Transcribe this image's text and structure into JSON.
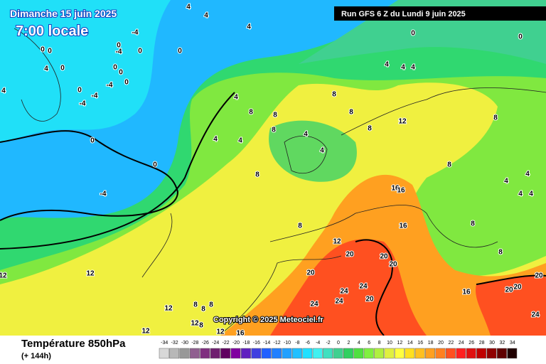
{
  "header": {
    "date": "Dimanche 15 juin 2025",
    "time": "7:00 locale",
    "run": "Run GFS 6 Z du Lundi 9 juin 2025"
  },
  "copyright": "Copyright © 2025 Meteociel.fr",
  "footer": {
    "title": "Température 850hPa",
    "lead": "(+ 144h)"
  },
  "legend": {
    "ticks": [
      -34,
      -32,
      -30,
      -28,
      -26,
      -24,
      -22,
      -20,
      -18,
      -16,
      -14,
      -12,
      -10,
      -8,
      -6,
      -4,
      -2,
      0,
      2,
      4,
      6,
      8,
      10,
      12,
      14,
      16,
      18,
      20,
      22,
      24,
      26,
      28,
      30,
      32,
      34
    ],
    "colors": [
      "#d8d8d8",
      "#b8b8b8",
      "#989898",
      "#906090",
      "#803080",
      "#702070",
      "#600060",
      "#8000a0",
      "#6020c0",
      "#4040e0",
      "#2060ff",
      "#2080ff",
      "#20a0ff",
      "#20c0ff",
      "#20e0ff",
      "#40f0f0",
      "#40e0c0",
      "#40d090",
      "#30d060",
      "#50e040",
      "#80f040",
      "#b0f040",
      "#e0f040",
      "#ffff40",
      "#ffe020",
      "#ffc020",
      "#ffa020",
      "#ff8020",
      "#ff5020",
      "#ff2020",
      "#e01010",
      "#c00000",
      "#900000",
      "#600000",
      "#200000"
    ]
  },
  "contour_labels": [
    4,
    4,
    4,
    -4,
    0,
    -4,
    0,
    0,
    0,
    0,
    0,
    4,
    0,
    0,
    0,
    -4,
    0,
    -4,
    -4,
    0,
    0,
    -4,
    4,
    0,
    0,
    4,
    4,
    4,
    8,
    4,
    8,
    8,
    8,
    12,
    8,
    4,
    4,
    4,
    4,
    8,
    8,
    8,
    8,
    4,
    4,
    4,
    4,
    16,
    16,
    16,
    8,
    12,
    8,
    20,
    20,
    20,
    8,
    20,
    20,
    20,
    20,
    16,
    24,
    24,
    24,
    24,
    20,
    24,
    12,
    12,
    12,
    8,
    8,
    8,
    12,
    8,
    12,
    12,
    16
  ]
}
